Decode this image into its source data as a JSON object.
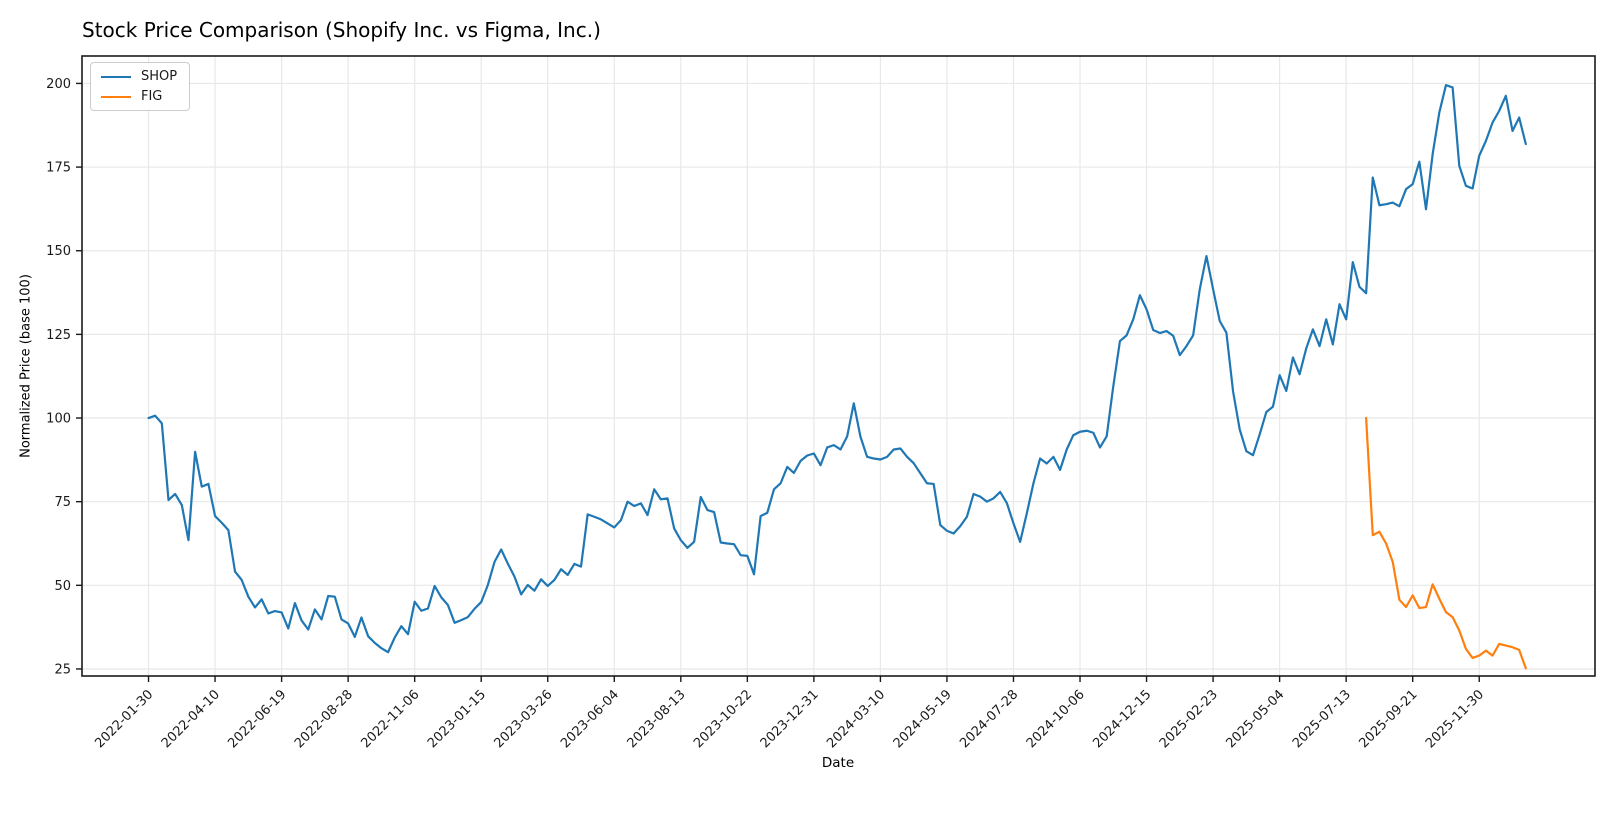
{
  "figure": {
    "kind": "static-chart-image"
  },
  "chart_data": {
    "type": "line",
    "title": "Stock Price Comparison (Shopify Inc. vs Figma, Inc.)",
    "xlabel": "Date",
    "ylabel": "Normalized Price (base 100)",
    "grid": true,
    "grid_color": "#e8e8e8",
    "background_color": "#ffffff",
    "spine_color": "#1a1a1a",
    "legend": {
      "position": "upper left",
      "entries": [
        "SHOP",
        "FIG"
      ]
    },
    "y_ticks": [
      25,
      50,
      75,
      100,
      125,
      150,
      175,
      200
    ],
    "ylim": [
      22.9,
      208.2
    ],
    "x_unit": "weeks since 2022-01-30",
    "xlim_weeks": [
      -10,
      217.4
    ],
    "x_tick_positions_weeks": [
      0,
      10,
      20,
      30,
      40,
      50,
      60,
      70,
      80,
      90,
      100,
      110,
      120,
      130,
      140,
      150,
      160,
      170,
      180,
      190,
      200
    ],
    "x_tick_labels": [
      "2022-01-30",
      "2022-04-10",
      "2022-06-19",
      "2022-08-28",
      "2022-11-06",
      "2023-01-15",
      "2023-03-26",
      "2023-06-04",
      "2023-08-13",
      "2023-10-22",
      "2023-12-31",
      "2024-03-10",
      "2024-05-19",
      "2024-07-28",
      "2024-10-06",
      "2024-12-15",
      "2025-02-23",
      "2025-05-04",
      "2025-07-13",
      "2025-09-21",
      "2025-11-30"
    ],
    "series": [
      {
        "name": "SHOP",
        "color": "#1f77b4",
        "frequency": "weekly",
        "start_date": "2022-01-30",
        "end_date": "2026-01-18",
        "start_week": 0,
        "values": [
          100,
          100.7,
          98.4,
          75.5,
          77.3,
          74,
          63.5,
          89.9,
          79.5,
          80.3,
          70.7,
          68.7,
          66.5,
          54.1,
          51.6,
          46.6,
          43.4,
          45.8,
          41.6,
          42.3,
          41.9,
          37.1,
          44.7,
          39.5,
          36.8,
          42.8,
          39.8,
          46.8,
          46.6,
          39.8,
          38.6,
          34.6,
          40.4,
          34.8,
          32.8,
          31.2,
          30,
          34.4,
          37.8,
          35.4,
          45.1,
          42.4,
          43.1,
          49.8,
          46.4,
          44.1,
          38.8,
          39.6,
          40.5,
          43,
          45,
          50.1,
          57,
          60.7,
          56.5,
          52.6,
          47.3,
          50.1,
          48.4,
          51.8,
          49.8,
          51.6,
          54.8,
          53.1,
          56.4,
          55.6,
          71.2,
          70.5,
          69.7,
          68.5,
          67.3,
          69.5,
          75,
          73.7,
          74.5,
          71,
          78.7,
          75.7,
          76,
          67,
          63.5,
          61.2,
          63,
          76.4,
          72.5,
          71.9,
          62.8,
          62.5,
          62.3,
          59,
          58.8,
          53.3,
          70.7,
          71.7,
          78.7,
          80.5,
          85.4,
          83.6,
          87.2,
          88.8,
          89.4,
          85.9,
          91.2,
          91.9,
          90.6,
          94.5,
          104.4,
          94.4,
          88.4,
          87.9,
          87.6,
          88.4,
          90.6,
          90.9,
          88.4,
          86.5,
          83.5,
          80.5,
          80.3,
          68,
          66.3,
          65.5,
          67.7,
          70.5,
          77.3,
          76.5,
          75,
          76,
          77.9,
          74.6,
          68.5,
          63,
          71.5,
          80.5,
          87.9,
          86.4,
          88.4,
          84.5,
          90.6,
          94.9,
          95.9,
          96.2,
          95.6,
          91.2,
          94.5,
          109.5,
          123,
          124.7,
          129.5,
          136.7,
          132.5,
          126.3,
          125.4,
          126,
          124.6,
          118.8,
          121.5,
          124.7,
          138.5,
          148.4,
          138.5,
          129,
          125.5,
          108,
          96.6,
          90.1,
          88.9,
          95.1,
          101.8,
          103.4,
          112.8,
          108.1,
          118.1,
          113.1,
          120.8,
          126.5,
          121.5,
          129.5,
          122,
          134,
          129.5,
          146.6,
          139.2,
          137.3,
          171.9,
          163.6,
          163.9,
          164.4,
          163.3,
          168.4,
          169.9,
          176.6,
          162.4,
          178.9,
          191.3,
          199.5,
          198.8,
          175.4,
          169.4,
          168.6,
          178.4,
          182.8,
          188.3,
          191.8,
          196.3,
          185.8,
          189.8,
          181.9
        ]
      },
      {
        "name": "FIG",
        "color": "#ff7f0e",
        "frequency": "weekly",
        "start_date": "2025-08-03",
        "end_date": "2026-01-18",
        "start_week": 183,
        "values": [
          100,
          65,
          66,
          62.5,
          57,
          45.7,
          43.5,
          47,
          43.2,
          43.5,
          50.3,
          46,
          42,
          40.5,
          36.5,
          31,
          28.3,
          29,
          30.5,
          29,
          32.5,
          32,
          31.5,
          30.7,
          25.2
        ]
      }
    ]
  }
}
